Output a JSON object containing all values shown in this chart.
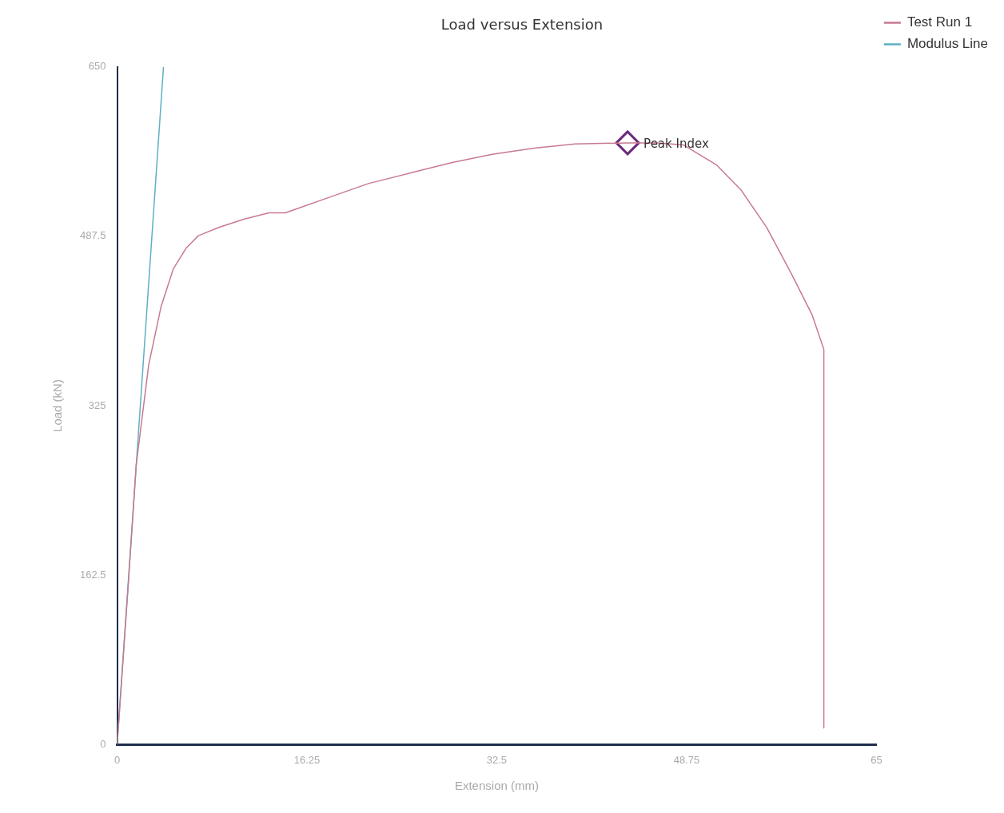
{
  "chart_data": {
    "type": "line",
    "title": "Load versus Extension",
    "xlabel": "Extension (mm)",
    "ylabel": "Load (kN)",
    "xlim": [
      0,
      65
    ],
    "xticks": [
      0,
      16.25,
      32.5,
      48.75,
      65
    ],
    "ylim": [
      0,
      650
    ],
    "yticks": [
      0,
      162.5,
      325,
      487.5,
      650
    ],
    "grid": false,
    "legend": "top right",
    "marker": "none",
    "series": [
      {
        "name": "Test Run 1",
        "color": "#c87a90",
        "x": [
          0,
          0.92,
          1.63,
          2.7,
          3.76,
          4.8,
          5.9,
          6.96,
          8.7,
          10.9,
          13,
          14.4,
          17.96,
          21.5,
          25.05,
          28.6,
          32.1,
          35.7,
          39.2,
          43.7,
          46.3,
          48.5,
          51.3,
          53.4,
          55.6,
          57.7,
          59.5,
          60.5,
          60.5
        ],
        "values": [
          0,
          148,
          268,
          364,
          420,
          456,
          476,
          488,
          496,
          504,
          510,
          510,
          524,
          538,
          548,
          558,
          566,
          572,
          576,
          577,
          577,
          575,
          556,
          532,
          496,
          452,
          412,
          379,
          16
        ]
      },
      {
        "name": "Modulus Line",
        "color": "#5fb0c4",
        "x": [
          0,
          3.97
        ],
        "values": [
          0,
          650
        ]
      },
      {
        "type": "scatter",
        "marker": "diamond",
        "color": "#6a2a7a",
        "x": [
          43.7
        ],
        "values": [
          577
        ]
      }
    ],
    "annotations": [
      {
        "text": "Peak Index",
        "x": 43.7,
        "y": 577
      }
    ]
  }
}
